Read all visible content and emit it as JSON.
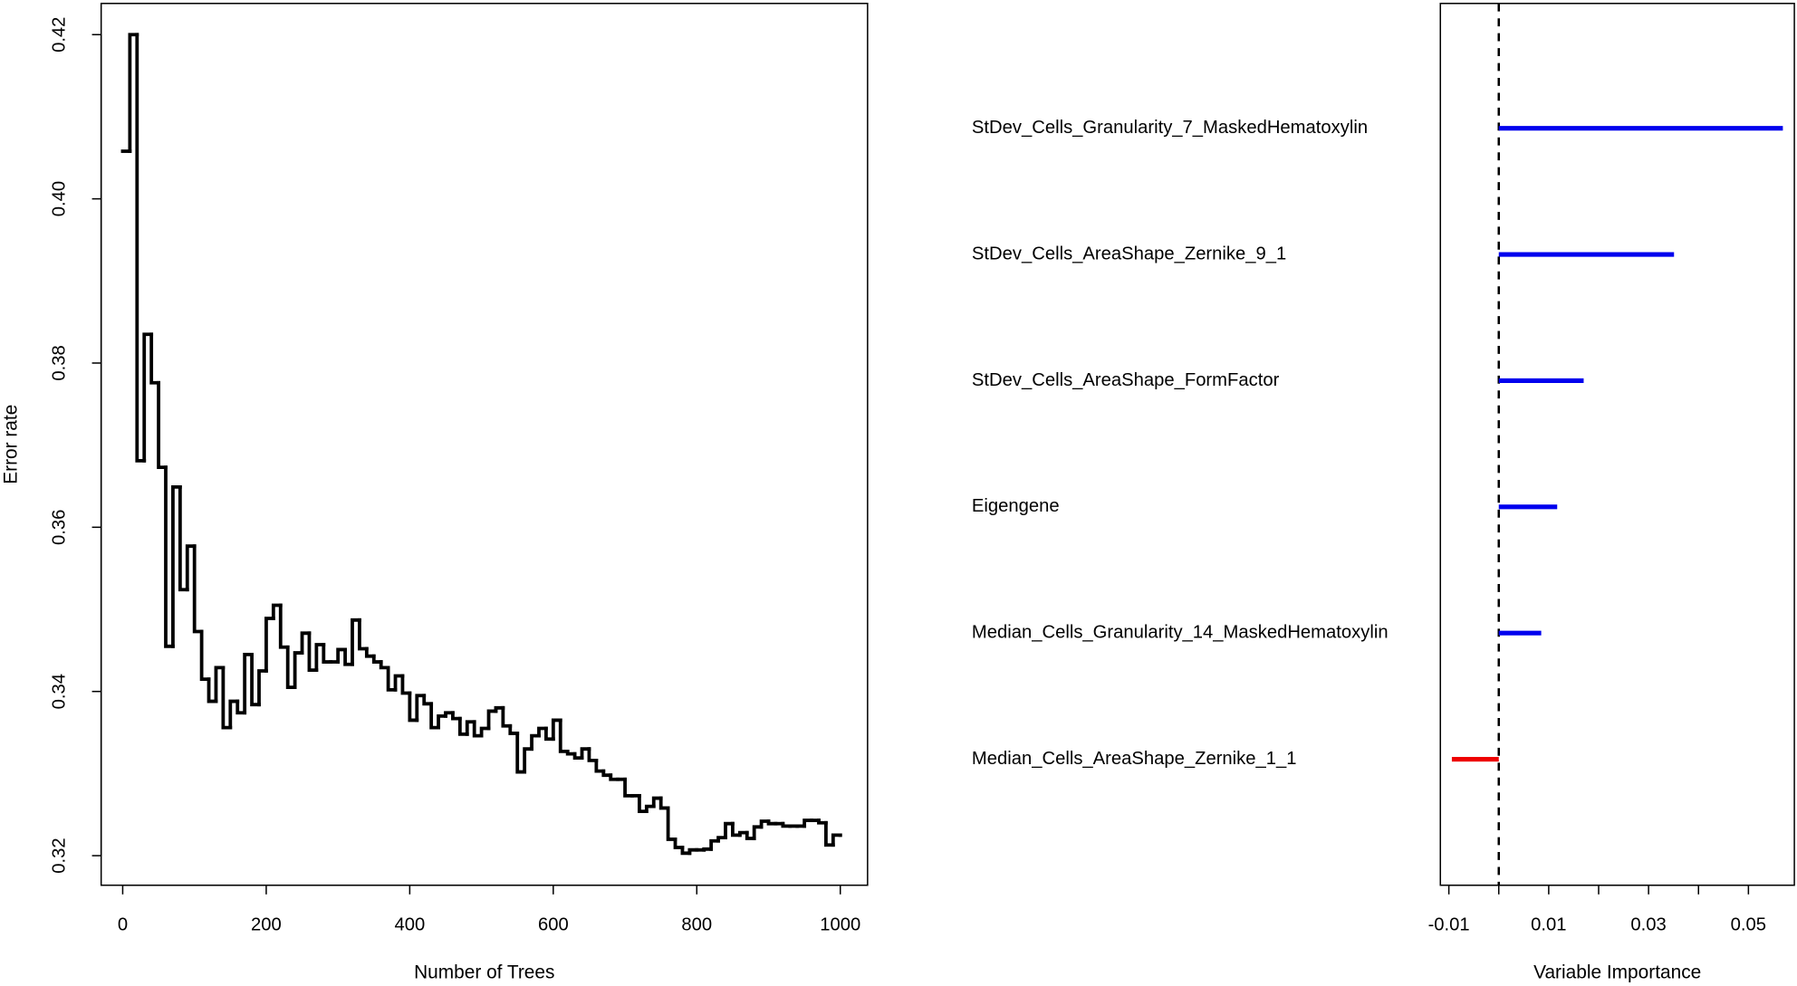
{
  "chart_data": [
    {
      "type": "step",
      "x_label": "Number of Trees",
      "y_label": "Error rate",
      "color": "#000000",
      "x": [
        0,
        10,
        20,
        30,
        40,
        50,
        60,
        70,
        80,
        90,
        100,
        110,
        120,
        130,
        140,
        150,
        160,
        170,
        180,
        190,
        200,
        210,
        220,
        230,
        240,
        250,
        260,
        270,
        280,
        290,
        300,
        310,
        320,
        330,
        340,
        350,
        360,
        370,
        380,
        390,
        400,
        410,
        420,
        430,
        440,
        450,
        460,
        470,
        480,
        490,
        500,
        510,
        520,
        530,
        540,
        550,
        560,
        570,
        580,
        590,
        600,
        610,
        620,
        630,
        640,
        650,
        660,
        670,
        680,
        690,
        700,
        710,
        720,
        730,
        740,
        750,
        760,
        770,
        780,
        790,
        800,
        810,
        820,
        830,
        840,
        850,
        860,
        870,
        880,
        890,
        900,
        910,
        920,
        930,
        940,
        950,
        960,
        970,
        980,
        990,
        1000
      ],
      "values": [
        0.4058,
        0.42,
        0.3681,
        0.3835,
        0.3776,
        0.3673,
        0.3455,
        0.3649,
        0.3524,
        0.3577,
        0.3473,
        0.3415,
        0.3388,
        0.3429,
        0.3356,
        0.3388,
        0.3374,
        0.3445,
        0.3384,
        0.3425,
        0.3489,
        0.3505,
        0.3454,
        0.3405,
        0.3447,
        0.3471,
        0.3426,
        0.3457,
        0.3436,
        0.3436,
        0.3451,
        0.3433,
        0.3487,
        0.3452,
        0.3443,
        0.3436,
        0.3429,
        0.3402,
        0.3419,
        0.3398,
        0.3365,
        0.3395,
        0.3385,
        0.3356,
        0.337,
        0.3374,
        0.3367,
        0.3348,
        0.3363,
        0.3346,
        0.3355,
        0.3376,
        0.338,
        0.3358,
        0.3349,
        0.3302,
        0.333,
        0.3346,
        0.3355,
        0.3342,
        0.3365,
        0.3327,
        0.3324,
        0.3319,
        0.333,
        0.3316,
        0.3303,
        0.3298,
        0.3293,
        0.3293,
        0.3273,
        0.3273,
        0.3254,
        0.326,
        0.327,
        0.3258,
        0.322,
        0.321,
        0.3203,
        0.3207,
        0.3207,
        0.3208,
        0.3218,
        0.3222,
        0.3239,
        0.3225,
        0.3228,
        0.3221,
        0.3235,
        0.3242,
        0.3239,
        0.3239,
        0.3236,
        0.3236,
        0.3236,
        0.3243,
        0.3243,
        0.324,
        0.3213,
        0.3225,
        0.3225
      ],
      "xlim": [
        -30,
        1038
      ],
      "xticks": [
        0,
        200,
        400,
        600,
        800,
        1000
      ],
      "ylim": [
        0.3164,
        0.4238
      ],
      "yticks": [
        0.32,
        0.34,
        0.36,
        0.38,
        {
          "value": 0.4,
          "label": "0.40"
        },
        0.42
      ]
    },
    {
      "type": "segment",
      "x_label": "Variable Importance",
      "categories": [
        "StDev_Cells_Granularity_7_MaskedHematoxylin",
        "StDev_Cells_AreaShape_Zernike_9_1",
        "StDev_Cells_AreaShape_FormFactor",
        "Eigengene",
        "Median_Cells_Granularity_14_MaskedHematoxylin",
        "Median_Cells_AreaShape_Zernike_1_1"
      ],
      "values": [
        0.0569,
        0.0351,
        0.017,
        0.0117,
        0.0085,
        -0.0094
      ],
      "colors": [
        "#0000ee",
        "#0000ee",
        "#0000ee",
        "#0000ee",
        "#0000ee",
        "#ee0000"
      ],
      "reference_line": 0,
      "xlim": [
        -0.0117,
        0.0592
      ],
      "xticks": [
        -0.01,
        0.01,
        0.03,
        0.05
      ],
      "xticks_unlabeled": [
        0,
        0.02,
        0.04
      ]
    }
  ]
}
